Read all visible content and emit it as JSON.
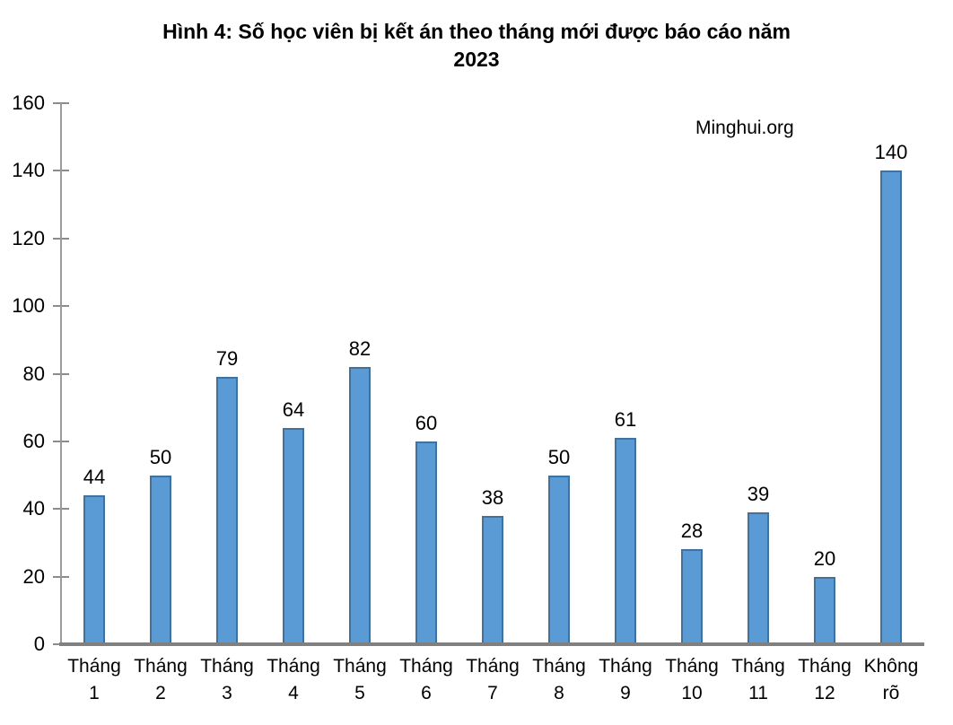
{
  "title": "Hình 4: Số học viên bị kết án theo tháng mới được báo cáo năm\n2023",
  "watermark": "Minghui.org",
  "chart_data": {
    "type": "bar",
    "title": "Hình 4: Số học viên bị kết án theo tháng mới được báo cáo năm 2023",
    "categories": [
      "Tháng 1",
      "Tháng 2",
      "Tháng 3",
      "Tháng 4",
      "Tháng 5",
      "Tháng 6",
      "Tháng 7",
      "Tháng 8",
      "Tháng 9",
      "Tháng 10",
      "Tháng 11",
      "Tháng 12",
      "Không rõ"
    ],
    "values": [
      44,
      50,
      79,
      64,
      82,
      60,
      38,
      50,
      61,
      28,
      39,
      20,
      140
    ],
    "xlabel": "",
    "ylabel": "",
    "ylim": [
      0,
      160
    ],
    "yticks": [
      0,
      20,
      40,
      60,
      80,
      100,
      120,
      140,
      160
    ],
    "grid": false,
    "legend": false,
    "annotation": "Minghui.org",
    "colors": {
      "bar_fill": "#5B9BD5",
      "bar_border": "#41719C",
      "x_axis": "#808080",
      "y_axis": "#9B9B9B",
      "tick": "#8C8C8C",
      "text": "#000000"
    }
  }
}
